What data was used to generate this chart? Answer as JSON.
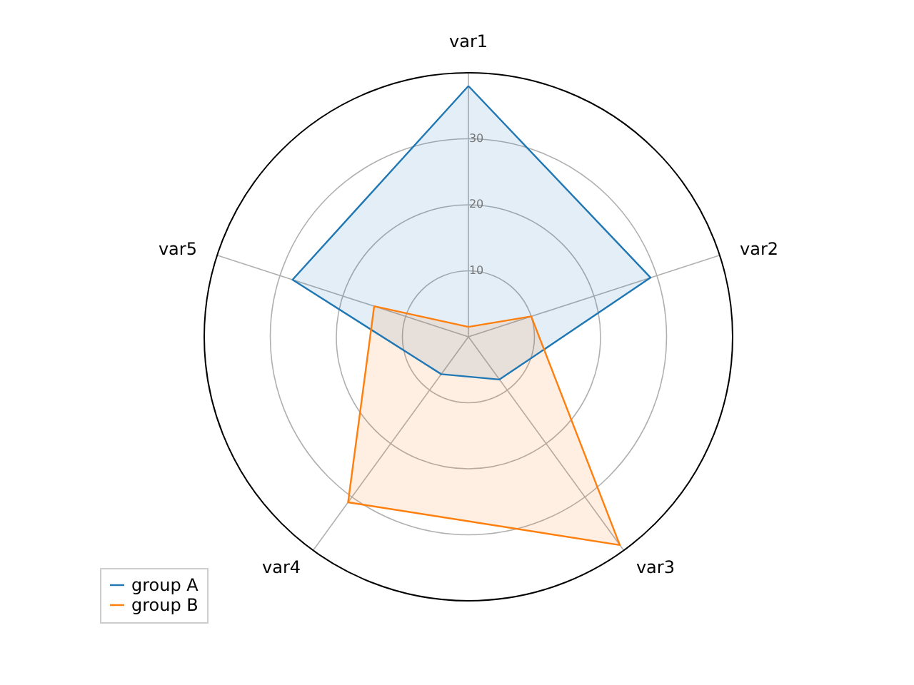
{
  "chart_data": {
    "type": "radar",
    "categories": [
      "var1",
      "var2",
      "var3",
      "var4",
      "var5"
    ],
    "series": [
      {
        "name": "group A",
        "color": "#1f77b4",
        "values": [
          38,
          29,
          8,
          7,
          28
        ]
      },
      {
        "name": "group B",
        "color": "#ff7f0e",
        "values": [
          1.5,
          10,
          39,
          31,
          15
        ]
      }
    ],
    "ylim": [
      0,
      40
    ],
    "yticks": [
      10,
      20,
      30
    ],
    "grid": true,
    "legend": "bottom left"
  }
}
